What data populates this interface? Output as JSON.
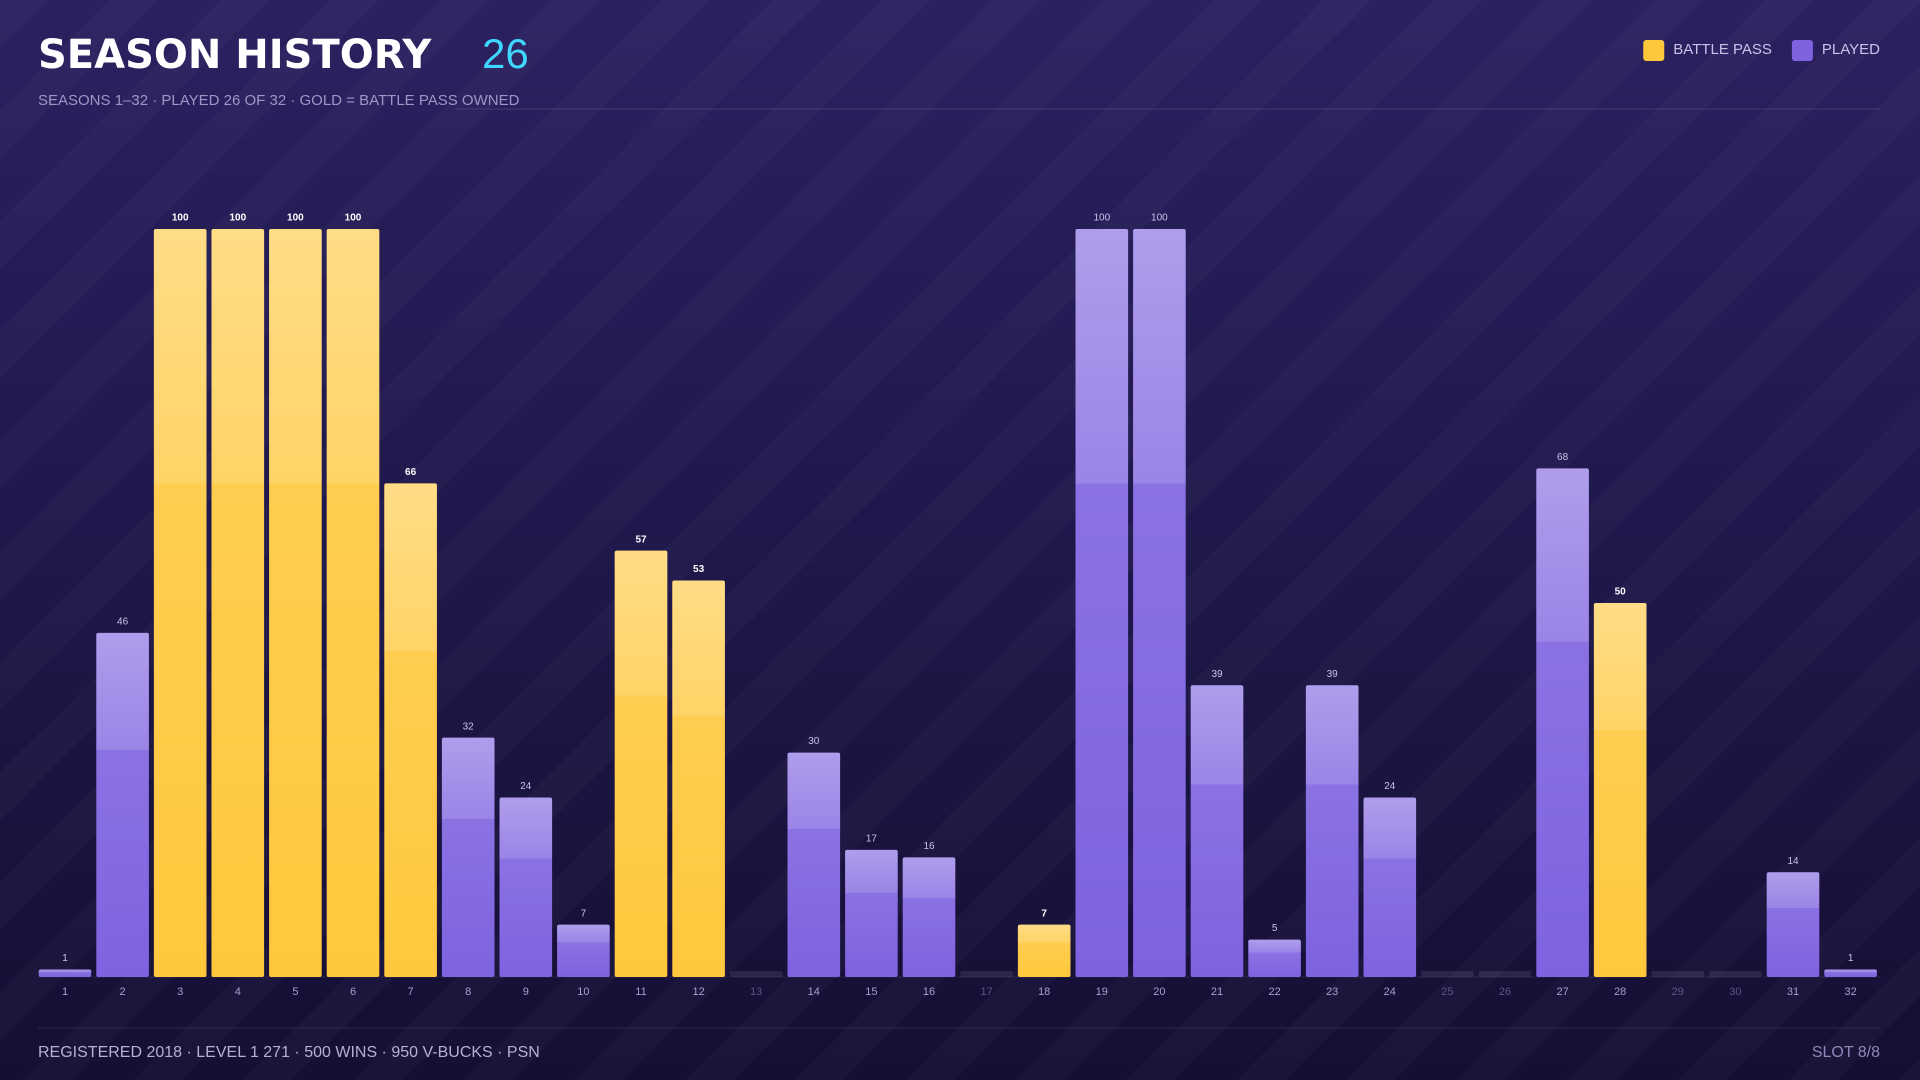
{
  "chart_data": {
    "type": "bar",
    "title": "SEASON HISTORY",
    "title_value": 26,
    "subtitle": "SEASONS 1–32 · PLAYED 26 OF 32 · GOLD = BATTLE PASS OWNED",
    "categories": [
      "1",
      "2",
      "3",
      "4",
      "5",
      "6",
      "7",
      "8",
      "9",
      "10",
      "11",
      "12",
      "13",
      "14",
      "15",
      "16",
      "17",
      "18",
      "19",
      "20",
      "21",
      "22",
      "23",
      "24",
      "25",
      "26",
      "27",
      "28",
      "29",
      "30",
      "31",
      "32"
    ],
    "series": [
      {
        "name": "BATTLE PASS",
        "color": "#ffc83c",
        "values": [
          null,
          null,
          100,
          100,
          100,
          100,
          66,
          null,
          null,
          null,
          57,
          53,
          null,
          null,
          null,
          null,
          null,
          7,
          null,
          null,
          null,
          null,
          null,
          null,
          null,
          null,
          null,
          50,
          null,
          null,
          null,
          null
        ]
      },
      {
        "name": "PLAYED",
        "color": "#7e62e0",
        "values": [
          1,
          46,
          null,
          null,
          null,
          null,
          null,
          32,
          24,
          7,
          null,
          null,
          null,
          30,
          17,
          16,
          null,
          null,
          100,
          100,
          39,
          5,
          39,
          24,
          null,
          null,
          68,
          null,
          null,
          null,
          14,
          1
        ]
      }
    ],
    "ylim": [
      0,
      100
    ],
    "legend": "top-right",
    "footer": {
      "left": "REGISTERED 2018 · LEVEL 1 271 · 500 WINS · 950 V-BUCKS · PSN",
      "right": "SLOT 8/8"
    }
  }
}
